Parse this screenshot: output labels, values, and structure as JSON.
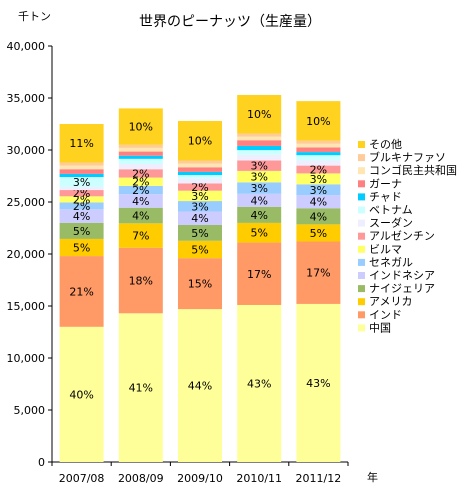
{
  "chart_data": {
    "type": "bar",
    "stacked": true,
    "title": "世界のピーナッツ（生産量）",
    "ylabel": "千トン",
    "xlabel": "年",
    "ylim": [
      0,
      40000
    ],
    "yticks": [
      0,
      5000,
      10000,
      15000,
      20000,
      25000,
      30000,
      35000,
      40000
    ],
    "ytick_labels": [
      "0",
      "5,000",
      "10,000",
      "15,000",
      "20,000",
      "25,000",
      "30,000",
      "35,000",
      "40,000"
    ],
    "grid": false,
    "legend_position": "right",
    "categories": [
      "2007/08",
      "2008/09",
      "2009/10",
      "2010/11",
      "2011/12"
    ],
    "series": [
      {
        "name": "中国",
        "color": "#FFFF99",
        "values": [
          13000,
          14300,
          14700,
          15100,
          15200
        ],
        "labels": [
          "40%",
          "41%",
          "44%",
          "43%",
          "43%"
        ]
      },
      {
        "name": "インド",
        "color": "#FF9966",
        "values": [
          6800,
          6300,
          4900,
          6000,
          6000
        ],
        "labels": [
          "21%",
          "18%",
          "15%",
          "17%",
          "17%"
        ]
      },
      {
        "name": "アメリカ",
        "color": "#FFCC00",
        "values": [
          1650,
          2350,
          1670,
          1890,
          1650
        ],
        "labels": [
          "5%",
          "7%",
          "5%",
          "5%",
          "5%"
        ]
      },
      {
        "name": "ナイジェリア",
        "color": "#99BB66",
        "values": [
          1550,
          1500,
          1520,
          1550,
          1550
        ],
        "labels": [
          "5%",
          "4%",
          "5%",
          "4%",
          "4%"
        ]
      },
      {
        "name": "インドネシア",
        "color": "#CCCCFF",
        "values": [
          1300,
          1300,
          1300,
          1250,
          1250
        ],
        "labels": [
          "4%",
          "4%",
          "4%",
          "4%",
          "4%"
        ]
      },
      {
        "name": "セネガル",
        "color": "#99CCFF",
        "values": [
          650,
          800,
          1000,
          1100,
          1050
        ],
        "labels": [
          "2%",
          "2%",
          "3%",
          "3%",
          "3%"
        ]
      },
      {
        "name": "ビルマ",
        "color": "#FFFF66",
        "values": [
          600,
          800,
          1000,
          1100,
          1050
        ],
        "labels": [
          "2%",
          "2%",
          "3%",
          "3%",
          "3%"
        ]
      },
      {
        "name": "アルゼンチン",
        "color": "#FF9999",
        "values": [
          600,
          800,
          700,
          1000,
          750
        ],
        "labels": [
          "2%",
          "2%",
          "2%",
          "3%",
          "2%"
        ]
      },
      {
        "name": "スーダン",
        "color": "#EEEEFF",
        "values": [
          300,
          500,
          450,
          550,
          500
        ],
        "labels": [
          "",
          "",
          "",
          "",
          ""
        ]
      },
      {
        "name": "ベトナム",
        "color": "#CCFFFF",
        "values": [
          950,
          500,
          350,
          450,
          500
        ],
        "labels": [
          "3%",
          "",
          "",
          "",
          ""
        ]
      },
      {
        "name": "チャド",
        "color": "#00CCFF",
        "values": [
          300,
          300,
          300,
          400,
          300
        ],
        "labels": [
          "",
          "",
          "",
          "",
          ""
        ]
      },
      {
        "name": "ガーナ",
        "color": "#FF8080",
        "values": [
          450,
          400,
          450,
          550,
          450
        ],
        "labels": [
          "",
          "",
          "",
          "",
          ""
        ]
      },
      {
        "name": "コンゴ民主共和国",
        "color": "#FFE6B3",
        "values": [
          350,
          350,
          350,
          350,
          350
        ],
        "labels": [
          "",
          "",
          "",
          "",
          ""
        ]
      },
      {
        "name": "ブルキナファソ",
        "color": "#FFCC99",
        "values": [
          300,
          300,
          300,
          300,
          300
        ],
        "labels": [
          "",
          "",
          "",
          "",
          ""
        ]
      },
      {
        "name": "その他",
        "color": "#FFD21F",
        "values": [
          3700,
          3500,
          3800,
          3700,
          3800
        ],
        "labels": [
          "11%",
          "10%",
          "10%",
          "10%",
          "10%"
        ]
      }
    ]
  }
}
